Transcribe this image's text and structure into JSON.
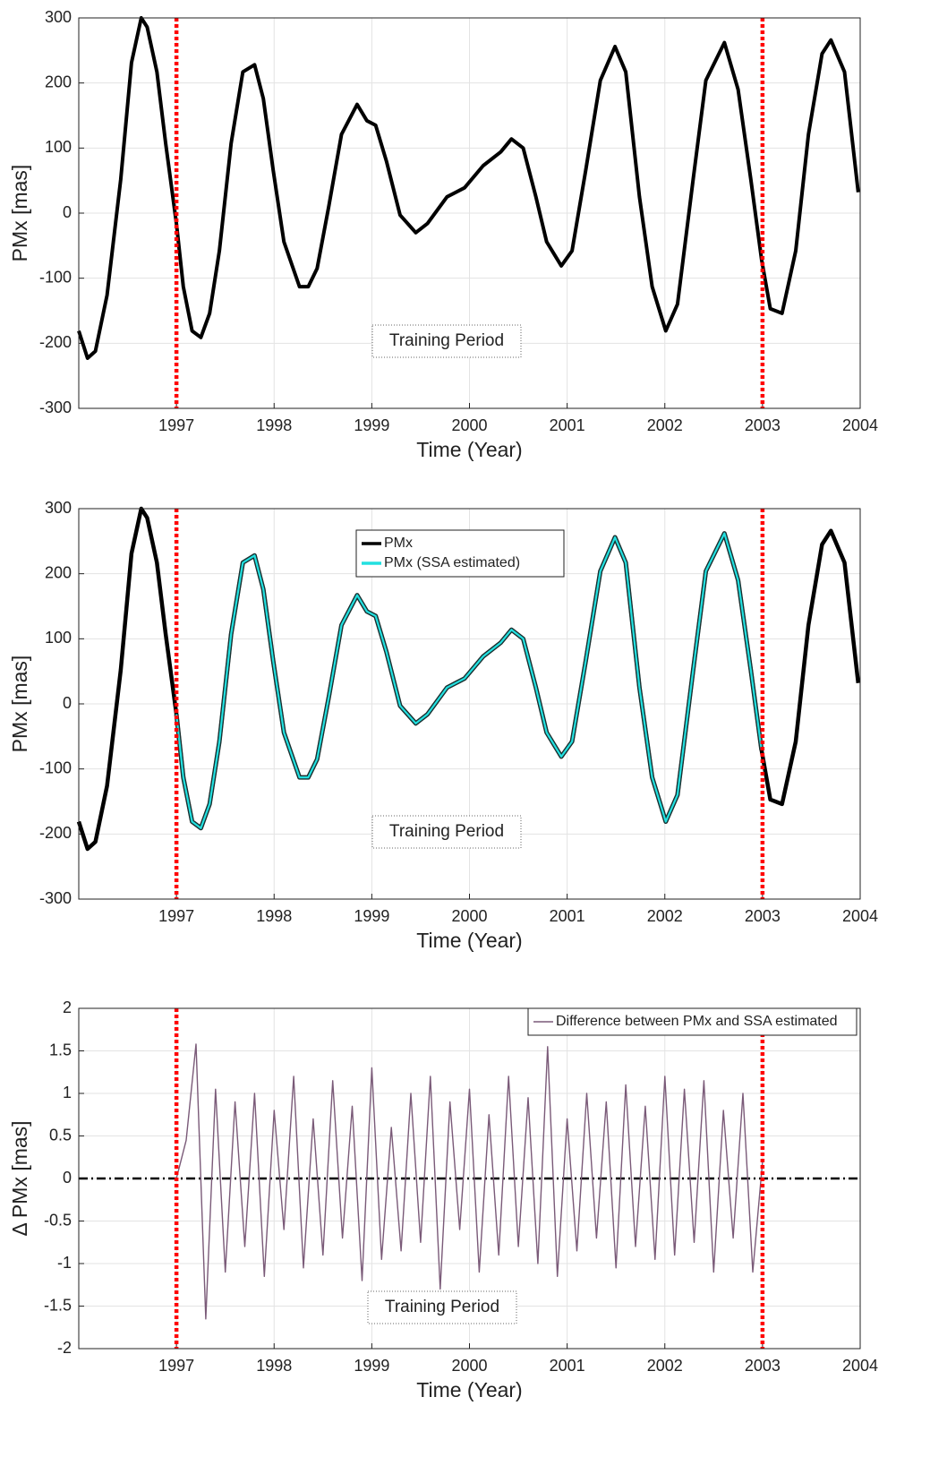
{
  "chart_data": [
    {
      "type": "line",
      "x": [
        1996.0,
        1996.09,
        1996.17,
        1996.29,
        1996.43,
        1996.54,
        1996.64,
        1996.7,
        1996.8,
        1996.89,
        1997.0,
        1997.07,
        1997.16,
        1997.25,
        1997.34,
        1997.44,
        1997.56,
        1997.68,
        1997.8,
        1997.89,
        1997.99,
        1998.1,
        1998.26,
        1998.35,
        1998.44,
        1998.56,
        1998.69,
        1998.85,
        1998.95,
        1999.04,
        1999.15,
        1999.29,
        1999.45,
        1999.57,
        1999.77,
        1999.95,
        2000.14,
        2000.32,
        2000.43,
        2000.55,
        2000.68,
        2000.79,
        2000.94,
        2001.05,
        2001.19,
        2001.34,
        2001.49,
        2001.6,
        2001.74,
        2001.87,
        2002.01,
        2002.13,
        2002.29,
        2002.42,
        2002.61,
        2002.75,
        2002.88,
        2002.99,
        2003.08,
        2003.2,
        2003.34,
        2003.47,
        2003.61,
        2003.7,
        2003.84,
        2003.98
      ],
      "series": [
        {
          "color": "#000000",
          "values": [
            -181,
            -223,
            -212,
            -126,
            52,
            231,
            300,
            286,
            217,
            107,
            -16,
            -113,
            -181,
            -191,
            -154,
            -58,
            107,
            217,
            228,
            176,
            66,
            -44,
            -113,
            -113,
            -85,
            11,
            121,
            167,
            142,
            135,
            80,
            -3,
            -30,
            -16,
            25,
            39,
            73,
            94,
            114,
            100,
            25,
            -44,
            -81,
            -58,
            66,
            204,
            256,
            217,
            25,
            -113,
            -181,
            -140,
            52,
            204,
            262,
            190,
            52,
            -71,
            -147,
            -154,
            -58,
            121,
            245,
            266,
            217,
            32
          ]
        }
      ],
      "xlim": [
        1996,
        2004
      ],
      "ylim": [
        -300,
        300
      ],
      "xticks": [
        1997,
        1998,
        1999,
        2000,
        2001,
        2002,
        2003,
        2004
      ],
      "yticks": [
        -300,
        -200,
        -100,
        0,
        100,
        200,
        300
      ],
      "xlabel": "Time (Year)",
      "ylabel": "PMx [mas]",
      "grid": true,
      "vlines": [
        1997,
        2003
      ],
      "vline_color": "#ff0000",
      "annotation": "Training Period"
    },
    {
      "type": "line",
      "x": [
        1996.0,
        1996.09,
        1996.17,
        1996.29,
        1996.43,
        1996.54,
        1996.64,
        1996.7,
        1996.8,
        1996.89,
        1997.0,
        1997.07,
        1997.16,
        1997.25,
        1997.34,
        1997.44,
        1997.56,
        1997.68,
        1997.8,
        1997.89,
        1997.99,
        1998.1,
        1998.26,
        1998.35,
        1998.44,
        1998.56,
        1998.69,
        1998.85,
        1998.95,
        1999.04,
        1999.15,
        1999.29,
        1999.45,
        1999.57,
        1999.77,
        1999.95,
        2000.14,
        2000.32,
        2000.43,
        2000.55,
        2000.68,
        2000.79,
        2000.94,
        2001.05,
        2001.19,
        2001.34,
        2001.49,
        2001.6,
        2001.74,
        2001.87,
        2002.01,
        2002.13,
        2002.29,
        2002.42,
        2002.61,
        2002.75,
        2002.88,
        2002.99,
        2003.08,
        2003.2,
        2003.34,
        2003.47,
        2003.61,
        2003.7,
        2003.84,
        2003.98
      ],
      "series": [
        {
          "name": "PMx",
          "color": "#000000",
          "values": [
            -181,
            -223,
            -212,
            -126,
            52,
            231,
            300,
            286,
            217,
            107,
            -16,
            -113,
            -181,
            -191,
            -154,
            -58,
            107,
            217,
            228,
            176,
            66,
            -44,
            -113,
            -113,
            -85,
            11,
            121,
            167,
            142,
            135,
            80,
            -3,
            -30,
            -16,
            25,
            39,
            73,
            94,
            114,
            100,
            25,
            -44,
            -81,
            -58,
            66,
            204,
            256,
            217,
            25,
            -113,
            -181,
            -140,
            52,
            204,
            262,
            190,
            52,
            -71,
            -147,
            -154,
            -58,
            121,
            245,
            266,
            217,
            32
          ]
        },
        {
          "name": "PMx (SSA estimated)",
          "color": "#22e0e0",
          "values": [
            null,
            null,
            null,
            null,
            null,
            null,
            null,
            null,
            null,
            null,
            -16,
            -113,
            -181,
            -191,
            -154,
            -58,
            107,
            217,
            228,
            176,
            66,
            -44,
            -113,
            -113,
            -85,
            11,
            121,
            167,
            142,
            135,
            80,
            -3,
            -30,
            -16,
            25,
            39,
            73,
            94,
            114,
            100,
            25,
            -44,
            -81,
            -58,
            66,
            204,
            256,
            217,
            25,
            -113,
            -181,
            -140,
            52,
            204,
            262,
            190,
            52,
            -71,
            null,
            null,
            null,
            null,
            null,
            null,
            null,
            null
          ]
        }
      ],
      "xlim": [
        1996,
        2004
      ],
      "ylim": [
        -300,
        300
      ],
      "xticks": [
        1997,
        1998,
        1999,
        2000,
        2001,
        2002,
        2003,
        2004
      ],
      "yticks": [
        -300,
        -200,
        -100,
        0,
        100,
        200,
        300
      ],
      "xlabel": "Time (Year)",
      "ylabel": "PMx [mas]",
      "grid": true,
      "vlines": [
        1997,
        2003
      ],
      "vline_color": "#ff0000",
      "annotation": "Training Period"
    },
    {
      "type": "line",
      "x": [
        1997.0,
        1997.1,
        1997.2,
        1997.3,
        1997.4,
        1997.5,
        1997.6,
        1997.7,
        1997.8,
        1997.9,
        1998.0,
        1998.1,
        1998.2,
        1998.3,
        1998.4,
        1998.5,
        1998.6,
        1998.7,
        1998.8,
        1998.9,
        1999.0,
        1999.1,
        1999.2,
        1999.3,
        1999.4,
        1999.5,
        1999.6,
        1999.7,
        1999.8,
        1999.9,
        2000.0,
        2000.1,
        2000.2,
        2000.3,
        2000.4,
        2000.5,
        2000.6,
        2000.7,
        2000.8,
        2000.9,
        2001.0,
        2001.1,
        2001.2,
        2001.3,
        2001.4,
        2001.5,
        2001.6,
        2001.7,
        2001.8,
        2001.9,
        2002.0,
        2002.1,
        2002.2,
        2002.3,
        2002.4,
        2002.5,
        2002.6,
        2002.7,
        2002.8,
        2002.9,
        2003.0
      ],
      "series": [
        {
          "name": "Difference between PMx and SSA estimated",
          "color": "#7a5a78",
          "values": [
            0.0,
            0.45,
            1.58,
            -1.65,
            1.05,
            -1.1,
            0.9,
            -0.8,
            1.0,
            -1.15,
            0.8,
            -0.6,
            1.2,
            -1.05,
            0.7,
            -0.9,
            1.15,
            -0.7,
            0.85,
            -1.2,
            1.3,
            -0.95,
            0.6,
            -0.85,
            1.0,
            -0.75,
            1.2,
            -1.3,
            0.9,
            -0.6,
            1.05,
            -1.1,
            0.75,
            -0.9,
            1.2,
            -0.8,
            0.95,
            -1.0,
            1.55,
            -1.15,
            0.7,
            -0.85,
            1.0,
            -0.7,
            0.9,
            -1.05,
            1.1,
            -0.8,
            0.85,
            -0.95,
            1.2,
            -0.9,
            1.05,
            -0.75,
            1.15,
            -1.1,
            0.8,
            -0.7,
            1.0,
            -1.1,
            0.2
          ]
        }
      ],
      "xlim": [
        1996,
        2004
      ],
      "ylim": [
        -2,
        2
      ],
      "xticks": [
        1997,
        1998,
        1999,
        2000,
        2001,
        2002,
        2003,
        2004
      ],
      "yticks": [
        -2,
        -1.5,
        -1,
        -0.5,
        0,
        0.5,
        1,
        1.5,
        2
      ],
      "xlabel": "Time (Year)",
      "ylabel": "Δ PMx [mas]",
      "grid": true,
      "vlines": [
        1997,
        2003
      ],
      "vline_color": "#ff0000",
      "hline": 0,
      "annotation": "Training Period"
    }
  ]
}
